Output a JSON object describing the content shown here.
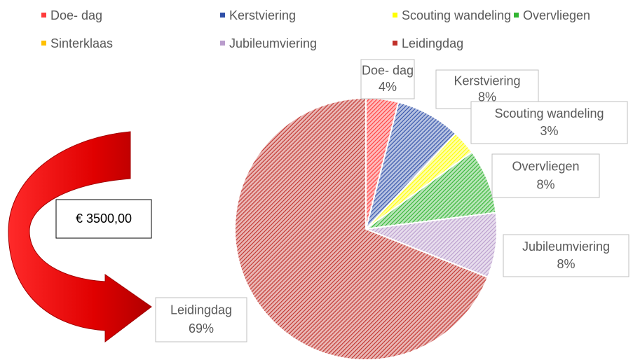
{
  "chart_data": {
    "type": "pie",
    "categories": [
      "Doe- dag",
      "Kerstviering",
      "Scouting wandeling",
      "Overvliegen",
      "Sinterklaas",
      "Jubileumviering",
      "Leidingdag"
    ],
    "values": [
      4,
      8,
      3,
      8,
      0,
      8,
      69
    ],
    "value_labels": [
      "4%",
      "8%",
      "3%",
      "8%",
      null,
      "8%",
      "69%"
    ],
    "colors": [
      "#ff3b3b",
      "#2f4fa8",
      "#ffff00",
      "#33b533",
      "#ffc000",
      "#b99ccc",
      "#c0302a"
    ],
    "legend": "top",
    "annotations": [
      "€ 3500,00"
    ]
  }
}
